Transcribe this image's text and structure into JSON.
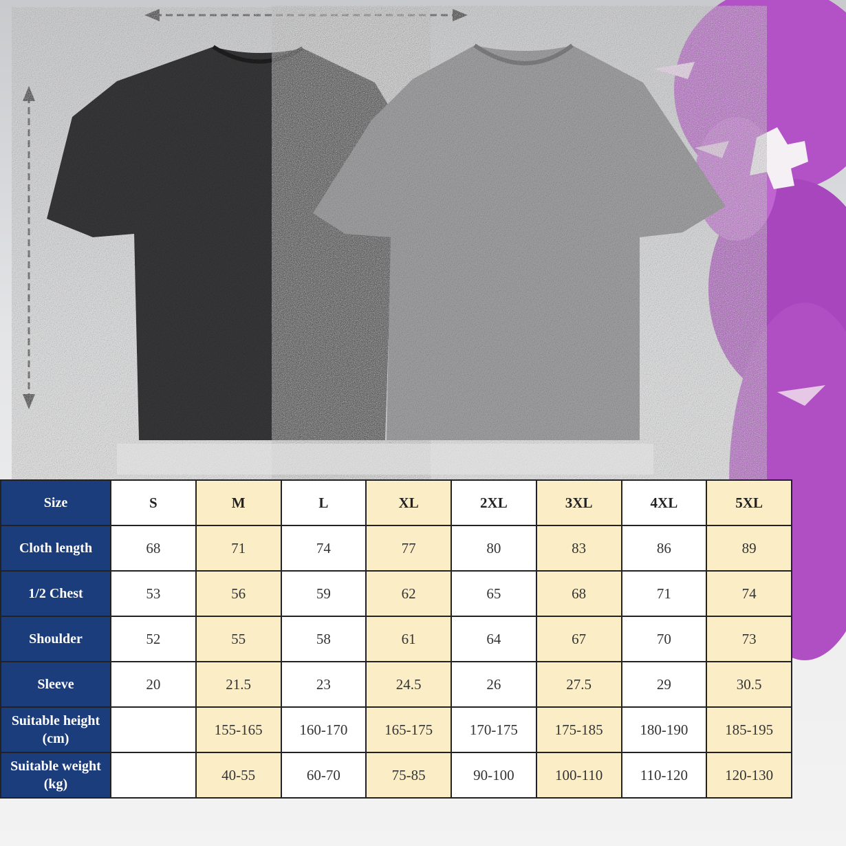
{
  "colors": {
    "header_blue": "#1c3d7c",
    "highlight_yellow": "#fbedc6",
    "shirt_black": "#3a3a3c",
    "shirt_gray": "#a9a9ab",
    "creature_purple": "#b04fc4"
  },
  "image_elements": {
    "width_arrow": "dashed-double-arrow-horizontal",
    "length_arrow": "dashed-double-arrow-vertical",
    "shirts": [
      "black washed t-shirt",
      "gray washed t-shirt"
    ]
  },
  "size_chart": {
    "headers": [
      "Size",
      "S",
      "M",
      "L",
      "XL",
      "2XL",
      "3XL",
      "4XL",
      "5XL"
    ],
    "rows": [
      {
        "label": "Cloth length",
        "values": [
          "68",
          "71",
          "74",
          "77",
          "80",
          "83",
          "86",
          "89"
        ]
      },
      {
        "label": "1/2 Chest",
        "values": [
          "53",
          "56",
          "59",
          "62",
          "65",
          "68",
          "71",
          "74"
        ]
      },
      {
        "label": "Shoulder",
        "values": [
          "52",
          "55",
          "58",
          "61",
          "64",
          "67",
          "70",
          "73"
        ]
      },
      {
        "label": "Sleeve",
        "values": [
          "20",
          "21.5",
          "23",
          "24.5",
          "26",
          "27.5",
          "29",
          "30.5"
        ]
      },
      {
        "label": "Suitable height (cm)",
        "values": [
          "",
          "155-165",
          "160-170",
          "165-175",
          "170-175",
          "175-185",
          "180-190",
          "185-195"
        ]
      },
      {
        "label": "Suitable weight (kg)",
        "values": [
          "",
          "40-55",
          "60-70",
          "75-85",
          "90-100",
          "100-110",
          "110-120",
          "120-130"
        ]
      }
    ]
  }
}
